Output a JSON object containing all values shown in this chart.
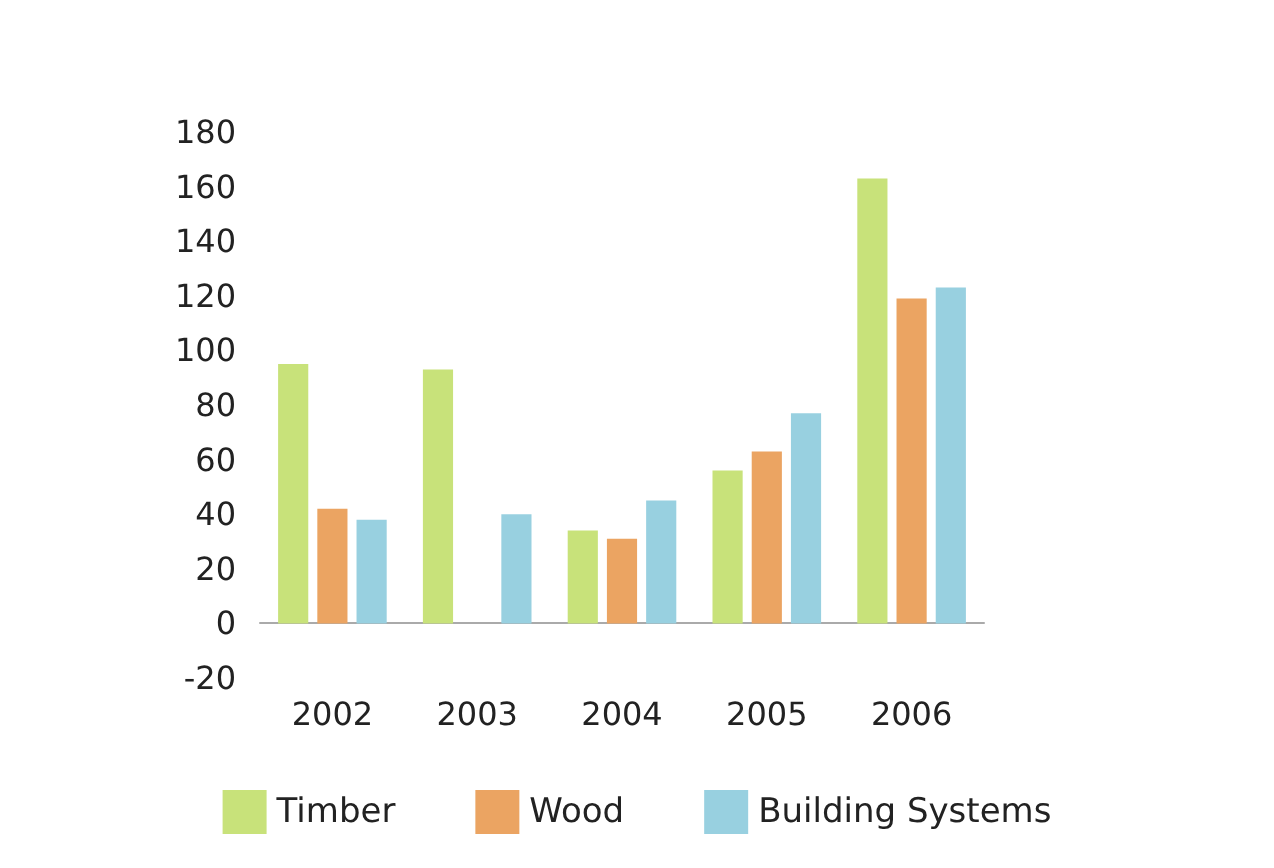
{
  "chart_data": {
    "type": "bar",
    "categories": [
      "2002",
      "2003",
      "2004",
      "2005",
      "2006"
    ],
    "series": [
      {
        "name": "Timber",
        "color": "#c8e27a",
        "values": [
          95,
          93,
          34,
          56,
          163
        ]
      },
      {
        "name": "Wood",
        "color": "#eba462",
        "values": [
          42,
          null,
          31,
          63,
          119
        ]
      },
      {
        "name": "Building Systems",
        "color": "#98d0e0",
        "values": [
          38,
          40,
          45,
          77,
          123
        ]
      }
    ],
    "ylim": [
      -20,
      180
    ],
    "yticks": [
      -20,
      0,
      20,
      40,
      60,
      80,
      100,
      120,
      140,
      160,
      180
    ],
    "legend": "bottom"
  }
}
